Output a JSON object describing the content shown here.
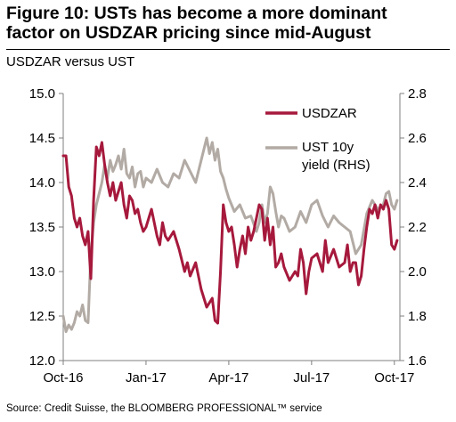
{
  "header": {
    "title_line1": "Figure 10: USTs has become a more dominant",
    "title_line2": "factor on USDZAR pricing since mid-August",
    "subtitle": "USDZAR versus UST",
    "source": "Source: Credit Suisse, the BLOOMBERG PROFESSIONAL™ service"
  },
  "chart_data": {
    "type": "line",
    "title": "USDZAR versus UST",
    "xlabel": "",
    "ylabel": "",
    "x_ticks": [
      "Oct-16",
      "Jan-17",
      "Apr-17",
      "Jul-17",
      "Oct-17"
    ],
    "x_tick_months": [
      0,
      3,
      6,
      9,
      12
    ],
    "x_range_months": [
      0,
      12.2
    ],
    "ylim_left": [
      12.0,
      15.0
    ],
    "y_ticks_left": [
      "12.0",
      "12.5",
      "13.0",
      "13.5",
      "14.0",
      "14.5",
      "15.0"
    ],
    "ylim_right": [
      1.6,
      2.8
    ],
    "y_ticks_right": [
      "1.6",
      "1.8",
      "2.0",
      "2.2",
      "2.4",
      "2.6",
      "2.8"
    ],
    "grid": false,
    "legend_position": "top-right",
    "colors": {
      "usdzar": "#a6193c",
      "ust": "#b2aaa4",
      "axis": "#7f7f7f"
    },
    "series": [
      {
        "name": "USDZAR",
        "axis": "left",
        "x_months": [
          0.0,
          0.1,
          0.2,
          0.3,
          0.4,
          0.5,
          0.6,
          0.7,
          0.8,
          0.9,
          1.0,
          1.1,
          1.2,
          1.3,
          1.4,
          1.5,
          1.6,
          1.7,
          1.8,
          1.9,
          2.0,
          2.1,
          2.2,
          2.3,
          2.4,
          2.5,
          2.6,
          2.7,
          2.8,
          2.9,
          3.0,
          3.2,
          3.4,
          3.5,
          3.6,
          3.7,
          3.8,
          4.0,
          4.2,
          4.4,
          4.5,
          4.6,
          4.8,
          5.0,
          5.2,
          5.4,
          5.5,
          5.6,
          5.7,
          5.8,
          5.9,
          6.0,
          6.1,
          6.2,
          6.3,
          6.4,
          6.5,
          6.6,
          6.7,
          6.8,
          6.9,
          7.0,
          7.1,
          7.2,
          7.3,
          7.4,
          7.5,
          7.6,
          7.7,
          7.8,
          7.9,
          8.0,
          8.2,
          8.4,
          8.5,
          8.6,
          8.7,
          8.8,
          8.9,
          9.0,
          9.2,
          9.4,
          9.5,
          9.6,
          9.8,
          10.0,
          10.2,
          10.3,
          10.4,
          10.5,
          10.6,
          10.7,
          10.8,
          10.9,
          11.0,
          11.1,
          11.2,
          11.3,
          11.4,
          11.5,
          11.6,
          11.7,
          11.8,
          11.9,
          12.0,
          12.1
        ],
        "values": [
          14.3,
          14.3,
          13.95,
          13.85,
          13.6,
          13.5,
          13.6,
          13.4,
          13.3,
          13.45,
          12.92,
          13.8,
          14.4,
          14.3,
          14.45,
          14.2,
          14.0,
          13.85,
          14.0,
          13.8,
          13.9,
          14.0,
          13.75,
          13.6,
          13.85,
          13.8,
          13.65,
          13.7,
          13.55,
          13.45,
          13.5,
          13.7,
          13.4,
          13.3,
          13.55,
          13.4,
          13.35,
          13.45,
          13.25,
          13.0,
          13.1,
          12.95,
          13.1,
          12.8,
          12.6,
          12.7,
          12.45,
          12.42,
          13.0,
          13.75,
          13.55,
          13.45,
          13.5,
          13.3,
          13.05,
          13.25,
          13.4,
          13.2,
          13.5,
          13.35,
          13.45,
          13.6,
          13.75,
          13.7,
          13.35,
          13.6,
          13.3,
          13.5,
          13.05,
          13.1,
          13.2,
          13.05,
          12.9,
          13.0,
          12.95,
          13.25,
          13.1,
          12.75,
          13.0,
          13.15,
          13.2,
          13.0,
          13.35,
          13.1,
          13.25,
          13.05,
          13.1,
          13.3,
          13.0,
          13.1,
          13.1,
          12.85,
          12.95,
          13.25,
          13.5,
          13.7,
          13.65,
          13.75,
          13.6,
          13.75,
          13.7,
          13.8,
          13.7,
          13.3,
          13.25,
          13.35
        ]
      },
      {
        "name": "UST 10y yield (RHS)",
        "axis": "right",
        "x_months": [
          0.0,
          0.1,
          0.2,
          0.3,
          0.4,
          0.5,
          0.6,
          0.7,
          0.8,
          0.9,
          1.0,
          1.1,
          1.2,
          1.3,
          1.4,
          1.5,
          1.6,
          1.7,
          1.8,
          1.9,
          2.0,
          2.1,
          2.2,
          2.3,
          2.4,
          2.5,
          2.6,
          2.7,
          2.8,
          2.9,
          3.0,
          3.2,
          3.4,
          3.6,
          3.8,
          4.0,
          4.2,
          4.4,
          4.6,
          4.8,
          5.0,
          5.2,
          5.3,
          5.4,
          5.5,
          5.6,
          5.7,
          5.8,
          5.9,
          6.0,
          6.2,
          6.4,
          6.6,
          6.8,
          7.0,
          7.1,
          7.2,
          7.3,
          7.4,
          7.5,
          7.6,
          7.7,
          7.8,
          7.9,
          8.0,
          8.2,
          8.4,
          8.6,
          8.8,
          9.0,
          9.2,
          9.4,
          9.6,
          9.8,
          10.0,
          10.2,
          10.4,
          10.6,
          10.8,
          11.0,
          11.2,
          11.4,
          11.6,
          11.7,
          11.8,
          11.9,
          12.0,
          12.1
        ],
        "values": [
          1.8,
          1.73,
          1.76,
          1.74,
          1.77,
          1.82,
          1.8,
          1.85,
          1.78,
          1.77,
          2.08,
          2.22,
          2.3,
          2.35,
          2.4,
          2.48,
          2.42,
          2.5,
          2.45,
          2.48,
          2.52,
          2.46,
          2.55,
          2.44,
          2.42,
          2.47,
          2.38,
          2.44,
          2.45,
          2.38,
          2.42,
          2.4,
          2.46,
          2.4,
          2.38,
          2.44,
          2.42,
          2.5,
          2.45,
          2.4,
          2.5,
          2.6,
          2.53,
          2.58,
          2.5,
          2.55,
          2.45,
          2.42,
          2.37,
          2.33,
          2.27,
          2.3,
          2.24,
          2.25,
          2.18,
          2.22,
          2.3,
          2.22,
          2.26,
          2.38,
          2.35,
          2.27,
          2.2,
          2.25,
          2.24,
          2.18,
          2.2,
          2.27,
          2.22,
          2.3,
          2.32,
          2.25,
          2.2,
          2.25,
          2.22,
          2.2,
          2.18,
          2.08,
          2.12,
          2.26,
          2.32,
          2.28,
          2.3,
          2.35,
          2.36,
          2.3,
          2.28,
          2.32
        ]
      }
    ]
  }
}
